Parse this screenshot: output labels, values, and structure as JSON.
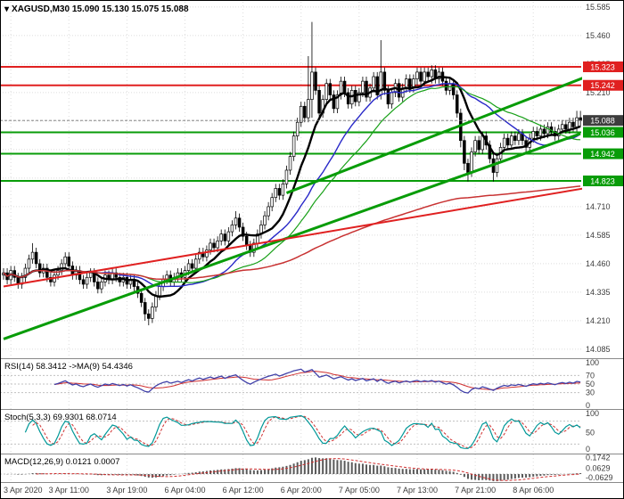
{
  "title": {
    "dropdown_icon": "▾",
    "text": "XAGUSD,M30 15.090 15.130 15.075 15.088"
  },
  "panels": {
    "rsi_label": "RSI(14) 58.3412 ->MA(9) 54.4346",
    "stoch_label": "Stoch(5,3,3) 69.9301 68.0714",
    "macd_label": "MACD(12,26,9) 0.0121 0.0007"
  },
  "colors": {
    "resistance": "#e02020",
    "support": "#089c08",
    "current_price_box": "#3d3d3d",
    "grid": "#dcdcdc",
    "ma_black": "#000000",
    "ma_blue": "#2828c8",
    "ma_green": "#18a018",
    "ma_red": "#c83232",
    "rsi_line": "#4040a8",
    "rsi_signal": "#d03030",
    "stoch_k": "#009898",
    "stoch_d": "#d03030",
    "macd_hist": "#5a5a5a",
    "macd_signal": "#d03030"
  },
  "chart_data": {
    "type": "candlestick",
    "symbol": "XAGUSD",
    "timeframe": "M30",
    "ohlc_current": {
      "open": 15.09,
      "high": 15.13,
      "low": 15.075,
      "close": 15.088
    },
    "price_axis_ticks": [
      15.585,
      15.46,
      15.335,
      15.21,
      14.71,
      14.585,
      14.46,
      14.335,
      14.21,
      14.085
    ],
    "time_labels": [
      "3 Apr 2020",
      "3 Apr 11:00",
      "3 Apr 19:00",
      "6 Apr 04:00",
      "6 Apr 12:00",
      "6 Apr 20:00",
      "7 Apr 05:00",
      "7 Apr 13:00",
      "7 Apr 21:00",
      "8 Apr 06:00"
    ],
    "first_open": 14.41,
    "closes": [
      14.42,
      14.39,
      14.43,
      14.4,
      14.37,
      14.4,
      14.44,
      14.48,
      14.51,
      14.46,
      14.42,
      14.44,
      14.4,
      14.38,
      14.41,
      14.43,
      14.46,
      14.49,
      14.45,
      14.41,
      14.43,
      14.39,
      14.37,
      14.4,
      14.42,
      14.38,
      14.35,
      14.38,
      14.41,
      14.39,
      14.42,
      14.4,
      14.38,
      14.4,
      14.37,
      14.39,
      14.36,
      14.33,
      14.29,
      14.24,
      14.22,
      14.27,
      14.32,
      14.36,
      14.39,
      14.41,
      14.38,
      14.4,
      14.42,
      14.4,
      14.43,
      14.46,
      14.44,
      14.48,
      14.51,
      14.49,
      14.52,
      14.55,
      14.53,
      14.56,
      14.59,
      14.56,
      14.6,
      14.63,
      14.66,
      14.62,
      14.58,
      14.54,
      14.51,
      14.55,
      14.59,
      14.63,
      14.67,
      14.71,
      14.75,
      14.79,
      14.76,
      14.81,
      14.87,
      14.93,
      15.02,
      15.08,
      15.15,
      15.1,
      15.18,
      15.3,
      15.22,
      15.12,
      15.18,
      15.25,
      15.2,
      15.14,
      15.2,
      15.26,
      15.21,
      15.16,
      15.22,
      15.17,
      15.21,
      15.26,
      15.19,
      15.23,
      15.28,
      15.2,
      15.3,
      15.22,
      15.16,
      15.21,
      15.25,
      15.19,
      15.23,
      15.27,
      15.23,
      15.27,
      15.3,
      15.26,
      15.3,
      15.28,
      15.31,
      15.27,
      15.3,
      15.26,
      15.22,
      15.25,
      15.2,
      15.12,
      15.0,
      14.9,
      14.86,
      14.95,
      15.0,
      14.96,
      15.02,
      14.98,
      14.92,
      14.86,
      14.92,
      14.97,
      15.01,
      14.98,
      15.02,
      15.0,
      15.03,
      15.0,
      14.97,
      15.01,
      15.04,
      15.02,
      15.05,
      15.03,
      15.06,
      15.04,
      15.02,
      15.05,
      15.07,
      15.05,
      15.08,
      15.06,
      15.1,
      15.088
    ],
    "highs": [
      14.44,
      14.44,
      14.45,
      14.45,
      14.42,
      14.42,
      14.46,
      14.5,
      14.55,
      14.53,
      14.48,
      14.46,
      14.46,
      14.42,
      14.43,
      14.45,
      14.48,
      14.51,
      14.51,
      14.47,
      14.45,
      14.45,
      14.41,
      14.42,
      14.44,
      14.44,
      14.4,
      14.4,
      14.43,
      14.43,
      14.44,
      14.44,
      14.42,
      14.42,
      14.42,
      14.41,
      14.41,
      14.38,
      14.35,
      14.31,
      14.26,
      14.29,
      14.34,
      14.38,
      14.41,
      14.43,
      14.43,
      14.42,
      14.44,
      14.44,
      14.45,
      14.48,
      14.48,
      14.5,
      14.53,
      14.53,
      14.54,
      14.57,
      14.57,
      14.58,
      14.61,
      14.61,
      14.62,
      14.65,
      14.69,
      14.68,
      14.64,
      14.6,
      14.56,
      14.57,
      14.61,
      14.65,
      14.69,
      14.73,
      14.77,
      14.81,
      14.81,
      14.83,
      14.89,
      14.95,
      15.04,
      15.1,
      15.17,
      15.17,
      15.37,
      15.52,
      15.32,
      15.24,
      15.2,
      15.27,
      15.27,
      15.22,
      15.22,
      15.28,
      15.28,
      15.23,
      15.24,
      15.24,
      15.23,
      15.28,
      15.28,
      15.25,
      15.3,
      15.3,
      15.44,
      15.32,
      15.24,
      15.23,
      15.27,
      15.27,
      15.25,
      15.29,
      15.29,
      15.29,
      15.32,
      15.32,
      15.32,
      15.32,
      15.33,
      15.33,
      15.32,
      15.32,
      15.28,
      15.27,
      15.27,
      15.22,
      15.14,
      15.02,
      14.92,
      14.97,
      15.02,
      15.02,
      15.04,
      15.04,
      15.0,
      14.94,
      14.94,
      14.99,
      15.03,
      15.03,
      15.04,
      15.04,
      15.05,
      15.05,
      15.02,
      15.03,
      15.06,
      15.06,
      15.07,
      15.07,
      15.08,
      15.08,
      15.06,
      15.07,
      15.09,
      15.09,
      15.1,
      15.1,
      15.13,
      15.13
    ],
    "lows": [
      14.39,
      14.37,
      14.37,
      14.38,
      14.35,
      14.35,
      14.38,
      14.42,
      14.46,
      14.44,
      14.4,
      14.4,
      14.38,
      14.36,
      14.36,
      14.39,
      14.41,
      14.44,
      14.43,
      14.39,
      14.39,
      14.37,
      14.35,
      14.35,
      14.38,
      14.36,
      14.33,
      14.33,
      14.36,
      14.37,
      14.37,
      14.38,
      14.36,
      14.36,
      14.35,
      14.35,
      14.34,
      14.31,
      14.27,
      14.21,
      14.19,
      14.2,
      14.25,
      14.3,
      14.34,
      14.37,
      14.36,
      14.36,
      14.38,
      14.38,
      14.38,
      14.41,
      14.42,
      14.42,
      14.46,
      14.47,
      14.47,
      14.5,
      14.51,
      14.51,
      14.54,
      14.54,
      14.54,
      14.58,
      14.61,
      14.6,
      14.56,
      14.52,
      14.49,
      14.49,
      14.53,
      14.57,
      14.61,
      14.65,
      14.69,
      14.73,
      14.74,
      14.74,
      14.79,
      14.85,
      14.91,
      15.0,
      15.06,
      15.08,
      15.08,
      15.1,
      15.2,
      15.1,
      15.1,
      15.16,
      15.18,
      15.12,
      15.12,
      15.18,
      15.19,
      15.14,
      15.14,
      15.15,
      15.15,
      15.19,
      15.17,
      15.17,
      15.21,
      15.18,
      15.18,
      15.2,
      15.14,
      15.14,
      15.19,
      15.17,
      15.17,
      15.21,
      15.21,
      15.21,
      15.24,
      15.24,
      15.24,
      15.26,
      15.25,
      15.25,
      15.25,
      15.24,
      15.2,
      15.2,
      15.18,
      15.1,
      14.97,
      14.87,
      14.82,
      14.84,
      14.93,
      14.94,
      14.94,
      14.96,
      14.9,
      14.82,
      14.84,
      14.9,
      14.95,
      14.96,
      14.96,
      14.98,
      14.98,
      14.98,
      14.95,
      14.95,
      14.99,
      15.0,
      15.0,
      15.01,
      15.01,
      15.02,
      15.0,
      15.0,
      15.03,
      15.03,
      15.03,
      15.04,
      15.04,
      15.06
    ],
    "levels": [
      {
        "price": 15.323,
        "kind": "resistance"
      },
      {
        "price": 15.242,
        "kind": "resistance"
      },
      {
        "price": 15.036,
        "kind": "support"
      },
      {
        "price": 14.942,
        "kind": "support"
      },
      {
        "price": 14.823,
        "kind": "support"
      }
    ],
    "current_price": 15.088,
    "trendlines": [
      {
        "from": [
          78,
          14.77
        ],
        "to": [
          172,
          15.35
        ],
        "kind": "support",
        "width": 3
      },
      {
        "from": [
          0,
          14.13
        ],
        "to": [
          159,
          15.03
        ],
        "kind": "support",
        "width": 3
      },
      {
        "from": [
          0,
          14.36
        ],
        "to": [
          171,
          14.82
        ],
        "kind": "resistance",
        "width": 2
      }
    ],
    "moving_averages": [
      {
        "period": 10,
        "color_key": "ma_black",
        "width": 2.4
      },
      {
        "period": 24,
        "color_key": "ma_blue",
        "width": 1.4
      },
      {
        "period": 34,
        "color_key": "ma_green",
        "width": 1.2
      },
      {
        "period": 200,
        "color_key": "ma_red",
        "width": 1.5,
        "cumulative": true
      }
    ],
    "indicators": {
      "rsi": {
        "period": 14,
        "ma_period": 9,
        "value": 58.3412,
        "ma_value": 54.4346,
        "level_lines": [
          70,
          50,
          30
        ],
        "axis_labels": [
          100,
          70,
          50,
          30,
          0
        ]
      },
      "stoch": {
        "k": 5,
        "d": 3,
        "slowing": 3,
        "value": 69.9301,
        "signal": 68.0714,
        "level_lines": [
          80,
          20
        ],
        "axis_labels": [
          100,
          50,
          0
        ]
      },
      "macd": {
        "fast": 12,
        "slow": 26,
        "signal": 9,
        "value": 0.0121,
        "signal_value": 0.0007,
        "axis_labels": [
          0.1742,
          0.0629,
          -0.0629
        ]
      }
    }
  }
}
